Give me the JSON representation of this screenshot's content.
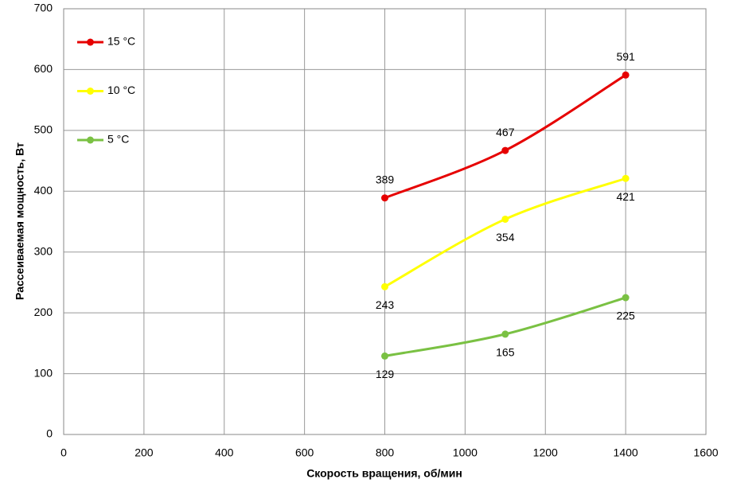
{
  "chart_data": {
    "type": "line",
    "x_label": "Скорость вращения, об/мин",
    "y_label": "Рассеиваемая мощность, Вт",
    "x": [
      800,
      1100,
      1400
    ],
    "series": [
      {
        "name": "15 °C",
        "color": "#e60000",
        "values": [
          389,
          467,
          591
        ]
      },
      {
        "name": "10 °C",
        "color": "#ffff00",
        "values": [
          243,
          354,
          421
        ]
      },
      {
        "name": "5 °C",
        "color": "#7ac143",
        "values": [
          129,
          165,
          225
        ]
      }
    ],
    "xlim": [
      0,
      1600
    ],
    "xticks": [
      0,
      200,
      400,
      600,
      800,
      1000,
      1200,
      1400,
      1600
    ],
    "ylim": [
      0,
      700
    ],
    "yticks": [
      0,
      100,
      200,
      300,
      400,
      500,
      600,
      700
    ],
    "grid": true,
    "legend": "top-left"
  }
}
